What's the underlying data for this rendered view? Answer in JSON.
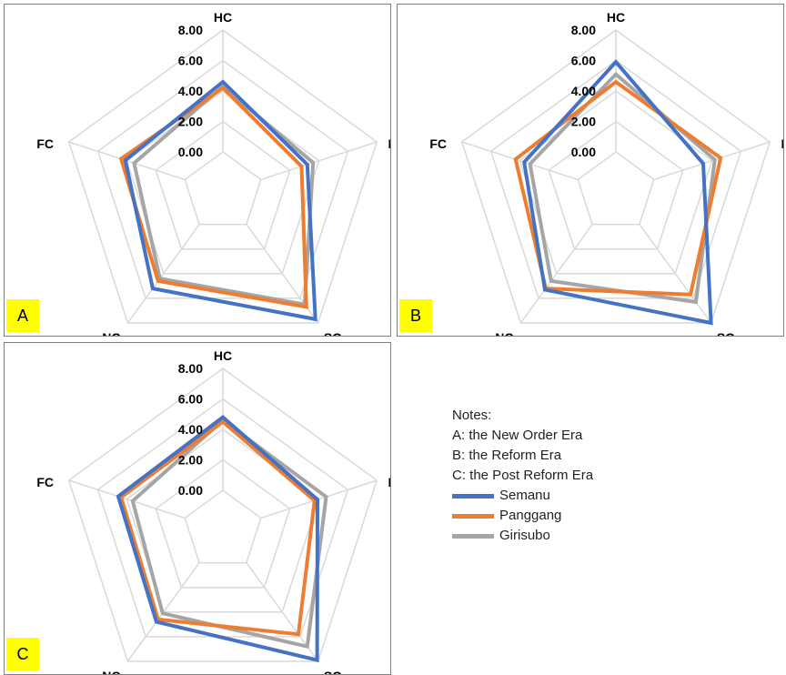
{
  "notes": {
    "title": "Notes:",
    "lines": [
      "A: the New Order Era",
      "B: the Reform Era",
      "C: the Post Reform Era"
    ]
  },
  "legend": [
    {
      "name": "Semanu",
      "color": "#4472c4"
    },
    {
      "name": "Panggang",
      "color": "#ed7d31"
    },
    {
      "name": "Girisubo",
      "color": "#a5a5a5"
    }
  ],
  "chart_data": [
    {
      "type": "radar",
      "panel_label": "A",
      "axes": [
        "HC",
        "PC",
        "SC",
        "NC",
        "FC"
      ],
      "ticks": [
        "0.00",
        "2.00",
        "4.00",
        "6.00",
        "8.00"
      ],
      "range": [
        0,
        8
      ],
      "grid": true,
      "series": [
        {
          "name": "Semanu",
          "values": [
            4.6,
            3.2,
            7.7,
            5.2,
            4.1
          ]
        },
        {
          "name": "Panggang",
          "values": [
            4.2,
            2.8,
            6.7,
            4.6,
            4.4
          ]
        },
        {
          "name": "Girisubo",
          "values": [
            4.3,
            3.6,
            6.5,
            4.4,
            3.5
          ]
        }
      ]
    },
    {
      "type": "radar",
      "panel_label": "B",
      "axes": [
        "HC",
        "PC",
        "SC",
        "NC",
        "FC"
      ],
      "ticks": [
        "0.00",
        "2.00",
        "4.00",
        "6.00",
        "8.00"
      ],
      "range": [
        0,
        8
      ],
      "grid": true,
      "series": [
        {
          "name": "Semanu",
          "values": [
            5.9,
            3.4,
            8.0,
            5.3,
            3.7
          ]
        },
        {
          "name": "Panggang",
          "values": [
            4.6,
            4.6,
            5.7,
            5.2,
            4.3
          ]
        },
        {
          "name": "Girisubo",
          "values": [
            5.1,
            4.2,
            6.3,
            4.6,
            3.3
          ]
        }
      ]
    },
    {
      "type": "radar",
      "panel_label": "C",
      "axes": [
        "HC",
        "PC",
        "SC",
        "NC",
        "FC"
      ],
      "ticks": [
        "0.00",
        "2.00",
        "4.00",
        "6.00",
        "8.00"
      ],
      "range": [
        0,
        8
      ],
      "grid": true,
      "series": [
        {
          "name": "Semanu",
          "values": [
            4.8,
            3.9,
            7.9,
            4.8,
            4.6
          ]
        },
        {
          "name": "Panggang",
          "values": [
            4.5,
            3.7,
            5.8,
            4.6,
            4.4
          ]
        },
        {
          "name": "Girisubo",
          "values": [
            4.6,
            4.5,
            6.8,
            4.1,
            3.6
          ]
        }
      ]
    }
  ]
}
